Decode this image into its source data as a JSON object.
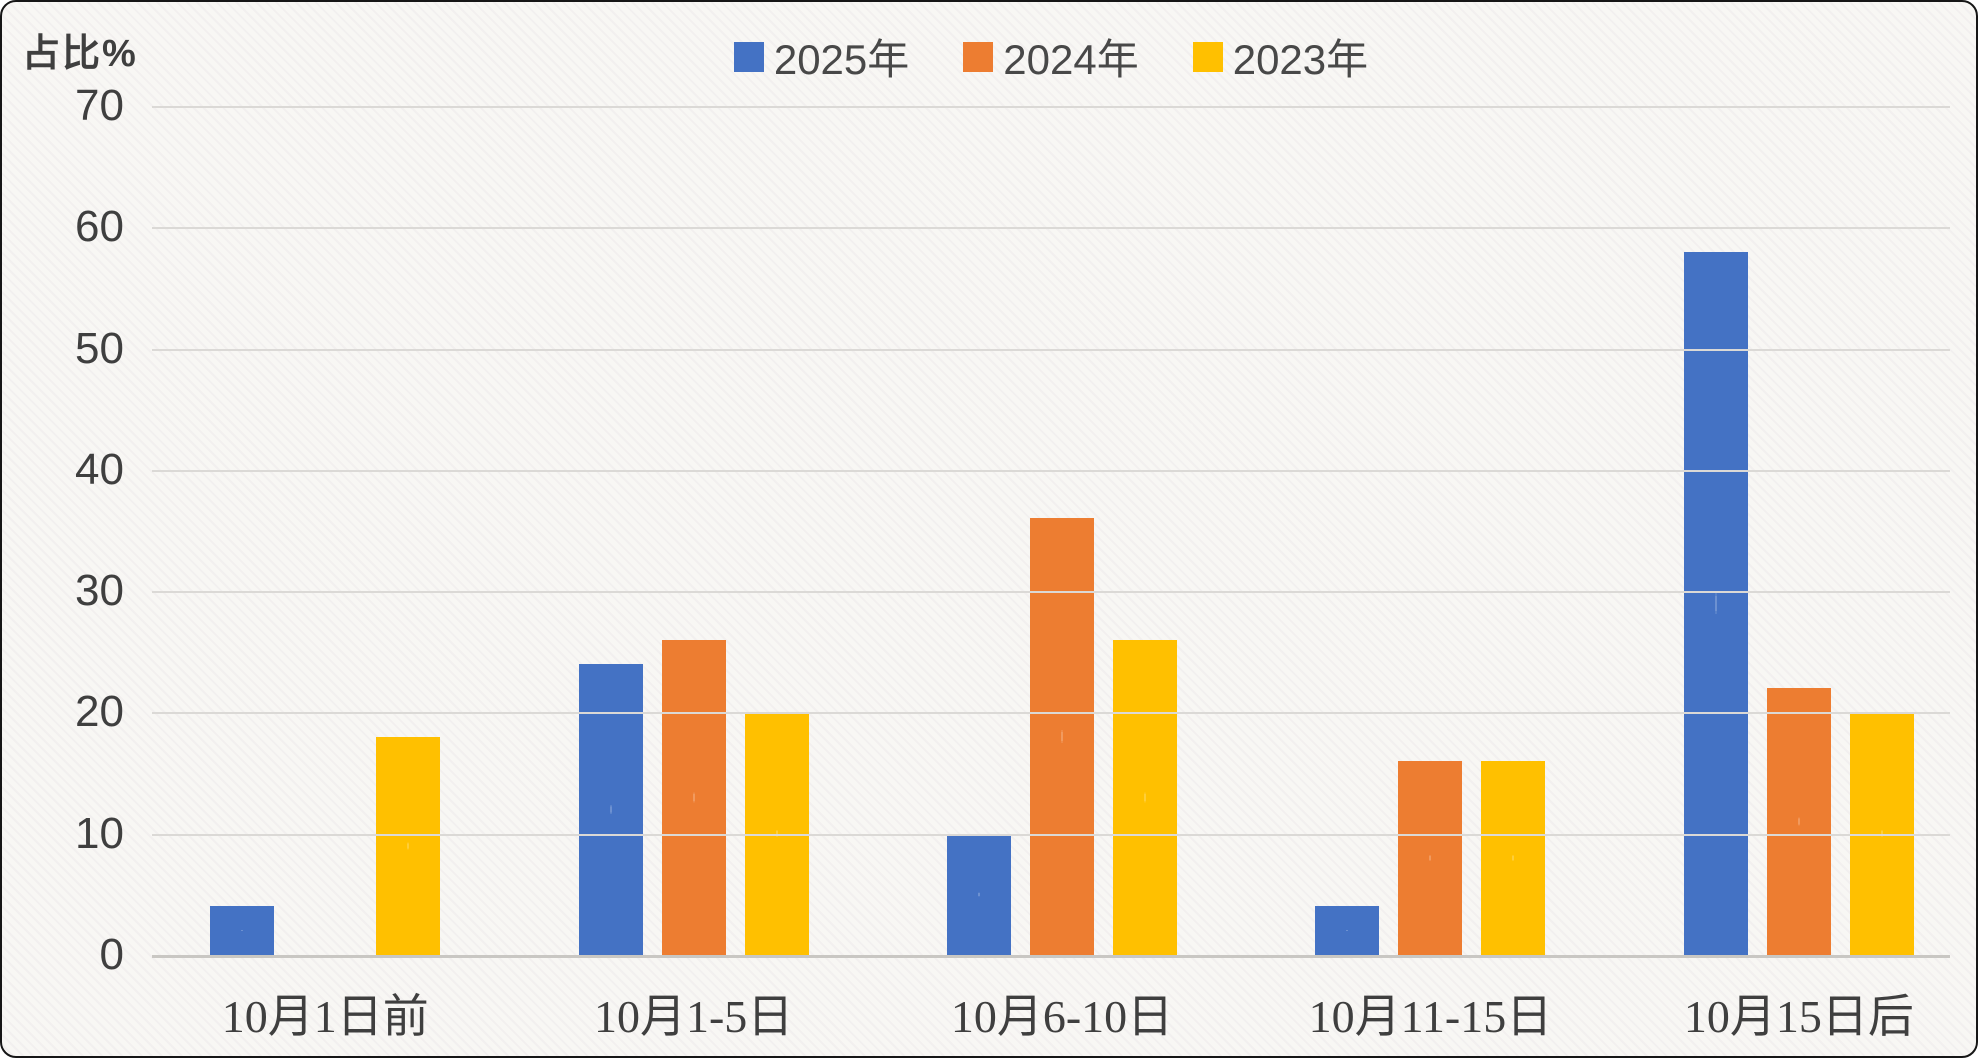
{
  "chart_data": {
    "type": "bar",
    "title": "",
    "ylabel": "占比%",
    "xlabel": "",
    "categories": [
      "10月1日前",
      "10月1-5日",
      "10月6-10日",
      "10月11-15日",
      "10月15日后"
    ],
    "series": [
      {
        "name": "2025年",
        "color": "#4472C4",
        "values": [
          4,
          24,
          10,
          4,
          58
        ]
      },
      {
        "name": "2024年",
        "color": "#ED7D31",
        "values": [
          0,
          26,
          36,
          16,
          22
        ]
      },
      {
        "name": "2023年",
        "color": "#FFC000",
        "values": [
          18,
          20,
          26,
          16,
          20
        ]
      }
    ],
    "ylim": [
      0,
      70
    ],
    "yticks": [
      0,
      10,
      20,
      30,
      40,
      50,
      60,
      70
    ],
    "grid": true,
    "legend_position": "top-center",
    "unit": "percent"
  },
  "colors": {
    "background": "#f8f7f4",
    "gridline": "#dbd9d6",
    "axis_line": "#c9c7c3",
    "text": "#3f3f3f",
    "frame_border": "#161616"
  }
}
